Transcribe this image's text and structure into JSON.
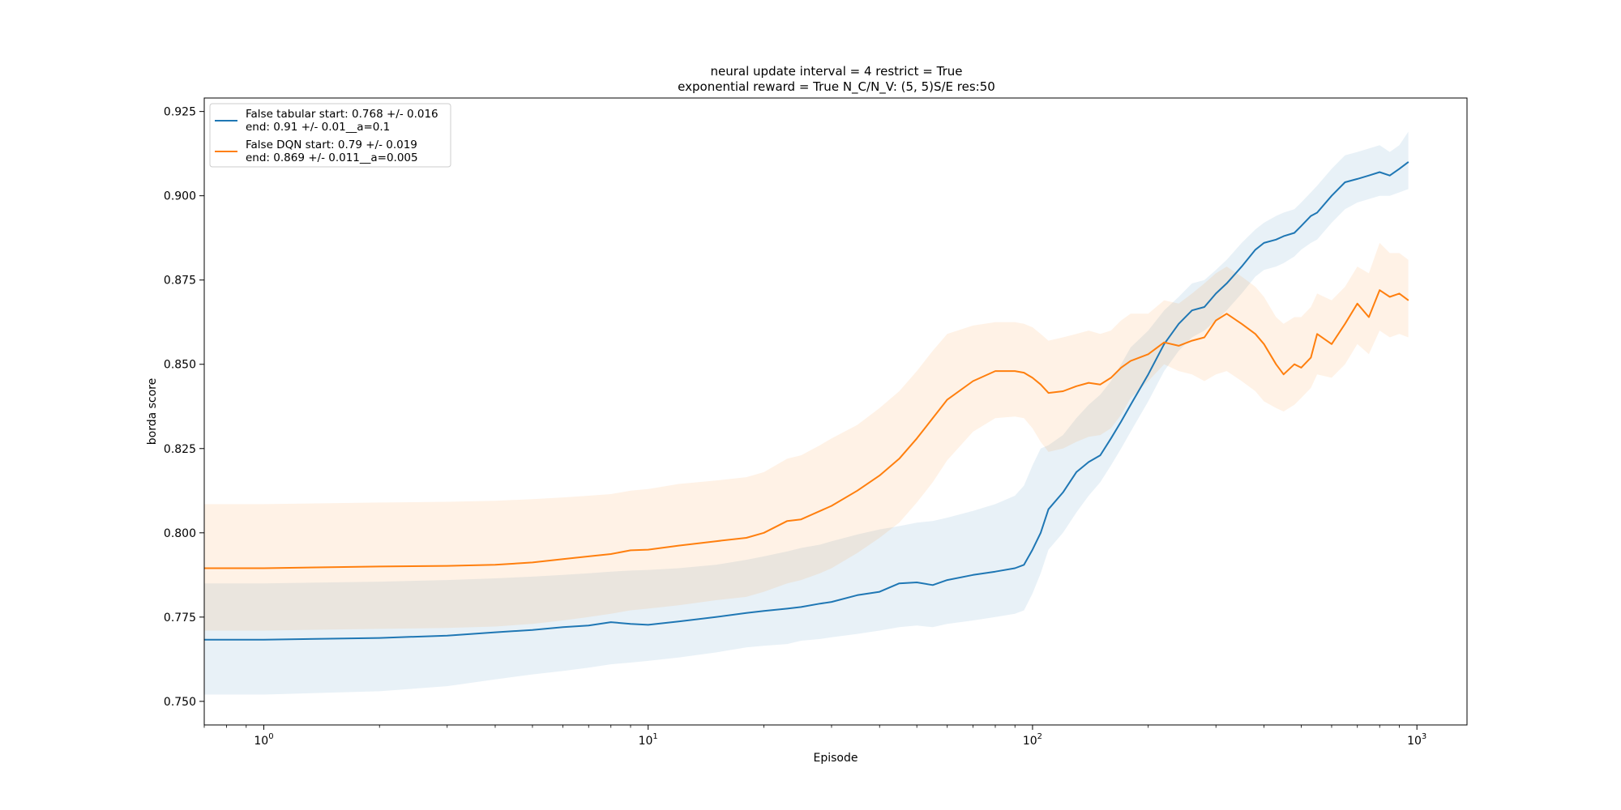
{
  "chart_data": {
    "type": "line",
    "title_lines": [
      "neural update interval = 4 restrict = True",
      "exponential reward = True N_C/N_V: (5, 5)S/E res:50"
    ],
    "xlabel": "Episode",
    "ylabel": "borda score",
    "xscale": "log",
    "xlim": [
      0.7,
      1350
    ],
    "ylim": [
      0.743,
      0.929
    ],
    "x_ticks": [
      {
        "value": 1,
        "label": "10",
        "exp": "0"
      },
      {
        "value": 10,
        "label": "10",
        "exp": "1"
      },
      {
        "value": 100,
        "label": "10",
        "exp": "2"
      },
      {
        "value": 1000,
        "label": "10",
        "exp": "3"
      }
    ],
    "y_ticks": [
      0.75,
      0.775,
      0.8,
      0.825,
      0.85,
      0.875,
      0.9,
      0.925
    ],
    "y_tick_labels": [
      "0.750",
      "0.775",
      "0.800",
      "0.825",
      "0.850",
      "0.875",
      "0.900",
      "0.925"
    ],
    "grid": false,
    "legend_position": "top-left",
    "series": [
      {
        "name_lines": [
          "False tabular start: 0.768 +/- 0.016",
          "end: 0.91 +/- 0.01__a=0.1"
        ],
        "color": "#1f77b4",
        "x": [
          0.7,
          1,
          2,
          3,
          4,
          5,
          6,
          7,
          8,
          9,
          10,
          12,
          15,
          18,
          20,
          23,
          25,
          28,
          30,
          35,
          40,
          45,
          50,
          55,
          60,
          70,
          80,
          90,
          95,
          100,
          105,
          110,
          120,
          130,
          140,
          150,
          160,
          170,
          180,
          200,
          220,
          240,
          260,
          280,
          300,
          320,
          350,
          380,
          400,
          430,
          450,
          480,
          500,
          530,
          550,
          600,
          650,
          700,
          750,
          800,
          850,
          900,
          950
        ],
        "y": [
          0.7683,
          0.7683,
          0.7688,
          0.7695,
          0.7705,
          0.7712,
          0.772,
          0.7725,
          0.7735,
          0.773,
          0.7727,
          0.7737,
          0.775,
          0.7762,
          0.7768,
          0.7775,
          0.778,
          0.779,
          0.7795,
          0.7815,
          0.7825,
          0.785,
          0.7853,
          0.7845,
          0.786,
          0.7875,
          0.7885,
          0.7895,
          0.7905,
          0.795,
          0.8,
          0.807,
          0.812,
          0.818,
          0.821,
          0.823,
          0.828,
          0.833,
          0.838,
          0.847,
          0.856,
          0.862,
          0.866,
          0.867,
          0.871,
          0.874,
          0.879,
          0.884,
          0.886,
          0.887,
          0.888,
          0.889,
          0.891,
          0.894,
          0.895,
          0.9,
          0.904,
          0.905,
          0.906,
          0.907,
          0.906,
          0.908,
          0.91
        ],
        "lower": [
          0.752,
          0.752,
          0.753,
          0.7545,
          0.7565,
          0.758,
          0.759,
          0.76,
          0.761,
          0.7615,
          0.762,
          0.763,
          0.7645,
          0.766,
          0.7665,
          0.767,
          0.768,
          0.7685,
          0.769,
          0.77,
          0.771,
          0.772,
          0.7725,
          0.772,
          0.773,
          0.774,
          0.775,
          0.776,
          0.777,
          0.782,
          0.788,
          0.795,
          0.8,
          0.806,
          0.811,
          0.815,
          0.82,
          0.825,
          0.83,
          0.839,
          0.848,
          0.854,
          0.858,
          0.86,
          0.863,
          0.866,
          0.871,
          0.876,
          0.878,
          0.879,
          0.88,
          0.882,
          0.884,
          0.886,
          0.887,
          0.892,
          0.896,
          0.898,
          0.899,
          0.9,
          0.9,
          0.901,
          0.902
        ],
        "upper": [
          0.785,
          0.785,
          0.7855,
          0.786,
          0.7865,
          0.787,
          0.7875,
          0.788,
          0.7885,
          0.7888,
          0.789,
          0.7895,
          0.7905,
          0.792,
          0.793,
          0.7945,
          0.7955,
          0.7965,
          0.7975,
          0.7995,
          0.801,
          0.802,
          0.803,
          0.8035,
          0.8045,
          0.8065,
          0.8085,
          0.811,
          0.814,
          0.82,
          0.825,
          0.826,
          0.829,
          0.834,
          0.838,
          0.841,
          0.845,
          0.85,
          0.855,
          0.86,
          0.866,
          0.87,
          0.874,
          0.875,
          0.878,
          0.881,
          0.886,
          0.89,
          0.892,
          0.894,
          0.895,
          0.896,
          0.898,
          0.901,
          0.903,
          0.908,
          0.912,
          0.913,
          0.914,
          0.915,
          0.913,
          0.915,
          0.919
        ]
      },
      {
        "name_lines": [
          "False DQN start: 0.79 +/- 0.019",
          "end: 0.869 +/- 0.011__a=0.005"
        ],
        "color": "#ff7f0e",
        "x": [
          0.7,
          1,
          2,
          3,
          4,
          5,
          6,
          7,
          8,
          9,
          10,
          12,
          15,
          18,
          20,
          23,
          25,
          28,
          30,
          35,
          40,
          45,
          50,
          55,
          60,
          70,
          80,
          90,
          95,
          100,
          105,
          110,
          120,
          130,
          140,
          150,
          160,
          170,
          180,
          200,
          220,
          240,
          260,
          280,
          300,
          320,
          350,
          380,
          400,
          430,
          450,
          480,
          500,
          530,
          550,
          600,
          650,
          700,
          750,
          800,
          850,
          900,
          950
        ],
        "y": [
          0.7895,
          0.7895,
          0.79,
          0.7902,
          0.7905,
          0.7912,
          0.7922,
          0.793,
          0.7937,
          0.7948,
          0.795,
          0.7962,
          0.7975,
          0.7985,
          0.8,
          0.8035,
          0.804,
          0.8065,
          0.808,
          0.8125,
          0.817,
          0.822,
          0.828,
          0.834,
          0.8395,
          0.845,
          0.848,
          0.848,
          0.8475,
          0.846,
          0.844,
          0.8415,
          0.842,
          0.8435,
          0.8445,
          0.844,
          0.846,
          0.849,
          0.851,
          0.853,
          0.8565,
          0.8555,
          0.857,
          0.858,
          0.863,
          0.865,
          0.862,
          0.859,
          0.856,
          0.85,
          0.847,
          0.85,
          0.849,
          0.852,
          0.859,
          0.856,
          0.862,
          0.868,
          0.864,
          0.872,
          0.87,
          0.871,
          0.869
        ],
        "lower": [
          0.771,
          0.771,
          0.7715,
          0.7718,
          0.7722,
          0.773,
          0.774,
          0.775,
          0.776,
          0.777,
          0.7775,
          0.7785,
          0.78,
          0.781,
          0.7825,
          0.785,
          0.786,
          0.788,
          0.7895,
          0.794,
          0.7985,
          0.803,
          0.809,
          0.815,
          0.8215,
          0.83,
          0.834,
          0.8345,
          0.834,
          0.831,
          0.827,
          0.824,
          0.825,
          0.827,
          0.8285,
          0.829,
          0.831,
          0.835,
          0.84,
          0.845,
          0.85,
          0.848,
          0.847,
          0.845,
          0.847,
          0.848,
          0.845,
          0.842,
          0.839,
          0.837,
          0.836,
          0.838,
          0.84,
          0.843,
          0.847,
          0.846,
          0.85,
          0.856,
          0.853,
          0.86,
          0.858,
          0.859,
          0.858
        ],
        "upper": [
          0.8085,
          0.8085,
          0.809,
          0.8092,
          0.8095,
          0.81,
          0.8105,
          0.811,
          0.8115,
          0.8125,
          0.813,
          0.8145,
          0.8155,
          0.8165,
          0.818,
          0.822,
          0.823,
          0.826,
          0.828,
          0.832,
          0.837,
          0.842,
          0.848,
          0.854,
          0.859,
          0.8615,
          0.8625,
          0.8625,
          0.862,
          0.861,
          0.859,
          0.857,
          0.858,
          0.859,
          0.86,
          0.859,
          0.86,
          0.863,
          0.865,
          0.865,
          0.869,
          0.868,
          0.871,
          0.874,
          0.877,
          0.879,
          0.876,
          0.873,
          0.87,
          0.864,
          0.862,
          0.864,
          0.864,
          0.867,
          0.871,
          0.869,
          0.873,
          0.879,
          0.877,
          0.886,
          0.883,
          0.883,
          0.881
        ]
      }
    ]
  }
}
